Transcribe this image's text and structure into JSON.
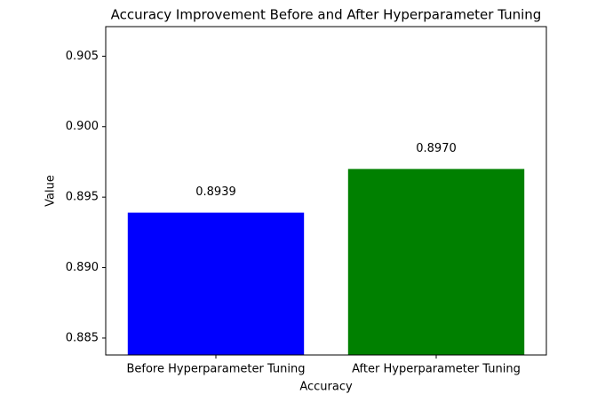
{
  "chart_data": {
    "type": "bar",
    "title": "Accuracy Improvement Before and After Hyperparameter Tuning",
    "x_label": "Accuracy",
    "y_label": "Value",
    "categories": [
      "Before Hyperparameter Tuning",
      "After Hyperparameter Tuning"
    ],
    "values": [
      0.8939,
      0.897
    ],
    "value_labels": [
      "0.8939",
      "0.8970"
    ],
    "colors": [
      "#0000ff",
      "#008000"
    ],
    "ylim": [
      0.8838,
      0.9071
    ],
    "yticks": [
      0.885,
      {
        "value": 0.89,
        "label": "0.890"
      },
      0.895,
      {
        "value": 0.9,
        "label": "0.900"
      },
      0.905
    ]
  }
}
